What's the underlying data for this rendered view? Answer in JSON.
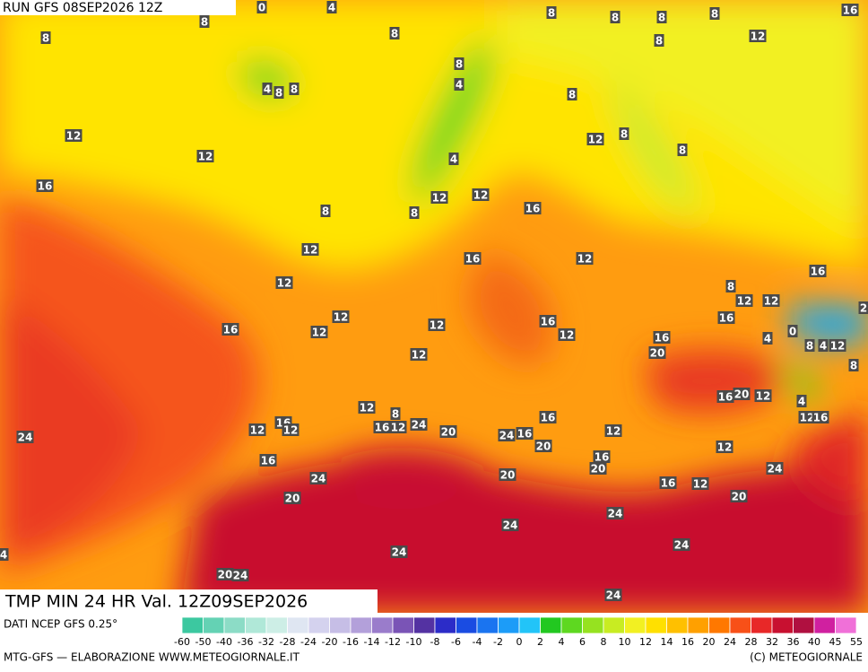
{
  "header": {
    "run": "RUN GFS 08SEP2026 12Z"
  },
  "title": "TMP MIN 24 HR Val. 12Z09SEP2026",
  "source": "DATI NCEP GFS 0.25°",
  "credit": "MTG-GFS — ELABORAZIONE WWW.METEOGIORNALE.IT",
  "copyright": "(C) METEOGIORNALE",
  "scale": {
    "ticks": [
      -60,
      -50,
      -40,
      -36,
      -32,
      -28,
      -24,
      -20,
      -16,
      -14,
      -12,
      -10,
      -8,
      -6,
      -4,
      -2,
      0,
      2,
      4,
      6,
      8,
      10,
      12,
      14,
      16,
      20,
      24,
      28,
      32,
      36,
      40,
      45,
      55
    ],
    "colors": [
      "#3cc8a0",
      "#64d2b4",
      "#8cdcc6",
      "#b0e8d8",
      "#cdeee6",
      "#dfe6f2",
      "#d4d2ee",
      "#c6bee6",
      "#b3a0da",
      "#9a7ccb",
      "#7a54b6",
      "#5432a2",
      "#2c2cc8",
      "#1a4ce2",
      "#1a74f0",
      "#1c9cf8",
      "#22c4f8",
      "#22c820",
      "#5ed820",
      "#96e220",
      "#c8ec22",
      "#f2f022",
      "#ffe000",
      "#ffc000",
      "#ffa000",
      "#ff7800",
      "#f85018",
      "#e82828",
      "#c81030",
      "#b01040",
      "#d020a0",
      "#f070d8"
    ]
  },
  "map_labels": [
    0,
    4,
    8,
    8,
    8,
    8,
    8,
    8,
    8,
    16,
    8,
    12,
    8,
    4,
    4,
    8,
    8,
    8,
    12,
    12,
    8,
    12,
    8,
    4,
    16,
    12,
    12,
    8,
    8,
    16,
    12,
    16,
    12,
    12,
    16,
    8,
    12,
    12,
    2,
    12,
    16,
    16,
    12,
    16,
    12,
    12,
    0,
    4,
    16,
    8,
    4,
    12,
    20,
    12,
    8,
    12,
    8,
    16,
    20,
    12,
    4,
    12,
    16,
    16,
    12,
    12,
    16,
    12,
    24,
    16,
    20,
    24,
    16,
    12,
    24,
    20,
    12,
    16,
    16,
    20,
    24,
    24,
    20,
    16,
    12,
    20,
    20,
    24,
    24,
    24,
    24,
    4,
    20,
    24,
    24
  ]
}
